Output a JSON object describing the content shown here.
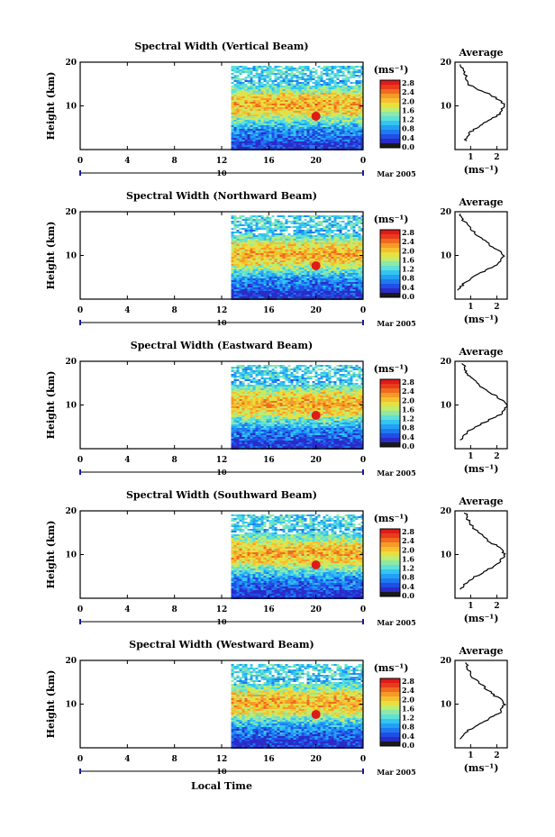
{
  "figure": {
    "xlabel": "Local Time",
    "date_label": "Mar 2005",
    "day_label": "10",
    "units_label": "(ms⁻¹)",
    "avg_title": "Average",
    "avg_xlabel": "(ms⁻¹)"
  },
  "colorbar": {
    "ticks": [
      "2.8",
      "2.4",
      "2.0",
      "1.6",
      "1.2",
      "0.8",
      "0.4",
      "0.0"
    ],
    "colors": [
      "#1a1a1a",
      "#2b2bc8",
      "#1f4fe6",
      "#1f7af0",
      "#22a0f5",
      "#35c5f0",
      "#5fe0d8",
      "#8ee8a8",
      "#c0ec70",
      "#e8e040",
      "#f5c030",
      "#f59a28",
      "#f06a20",
      "#e83c1c",
      "#e01a1a"
    ]
  },
  "chart_data": [
    {
      "type": "heatmap",
      "title": "Spectral Width (Vertical Beam)",
      "ylabel": "Height (km)",
      "xlim": [
        0,
        24
      ],
      "ylim": [
        0,
        20
      ],
      "xticks": [
        "0",
        "4",
        "8",
        "12",
        "16",
        "20",
        "0"
      ],
      "yticks": [
        "20",
        "10"
      ],
      "data_start_hour": 12.8,
      "avg_profile": {
        "xlim": [
          0.4,
          2.4
        ],
        "xticks": [
          "1",
          "2"
        ],
        "x": [
          0.8,
          1.0,
          1.5,
          2.1,
          2.3,
          2.2,
          1.9,
          1.6,
          1.2,
          0.9,
          0.8,
          0.8,
          0.7,
          0.6
        ],
        "y": [
          2,
          4,
          6,
          8,
          10,
          11,
          12,
          13,
          14,
          15,
          16,
          17,
          18,
          19.5
        ]
      }
    },
    {
      "type": "heatmap",
      "title": "Spectral Width (Northward Beam)",
      "ylabel": "Height (km)",
      "xlim": [
        0,
        24
      ],
      "ylim": [
        0,
        20
      ],
      "xticks": [
        "0",
        "4",
        "8",
        "12",
        "16",
        "20",
        "0"
      ],
      "yticks": [
        "20",
        "10"
      ],
      "data_start_hour": 12.8,
      "avg_profile": {
        "xlim": [
          0.4,
          2.4
        ],
        "xticks": [
          "1",
          "2"
        ],
        "x": [
          0.5,
          0.8,
          1.4,
          2.0,
          2.3,
          2.1,
          1.8,
          1.6,
          1.4,
          1.2,
          1.0,
          0.9,
          0.7,
          0.6
        ],
        "y": [
          2,
          4,
          6,
          8,
          10,
          11,
          12,
          13,
          14,
          15,
          16,
          17,
          18,
          19.5
        ]
      }
    },
    {
      "type": "heatmap",
      "title": "Spectral Width (Eastward Beam)",
      "ylabel": "Height (km)",
      "xlim": [
        0,
        24
      ],
      "ylim": [
        0,
        20
      ],
      "xticks": [
        "0",
        "4",
        "8",
        "12",
        "16",
        "20",
        "0"
      ],
      "yticks": [
        "20",
        "10"
      ],
      "data_start_hour": 12.8,
      "avg_profile": {
        "xlim": [
          0.4,
          2.4
        ],
        "xticks": [
          "1",
          "2"
        ],
        "x": [
          0.6,
          0.9,
          1.5,
          2.2,
          2.4,
          2.2,
          2.0,
          1.7,
          1.4,
          1.3,
          1.1,
          0.9,
          0.8,
          0.7
        ],
        "y": [
          2,
          4,
          6,
          8,
          10,
          11,
          12,
          13,
          14,
          15,
          16,
          17,
          18,
          19.5
        ]
      }
    },
    {
      "type": "heatmap",
      "title": "Spectral Width (Southward Beam)",
      "ylabel": "Height (km)",
      "xlim": [
        0,
        24
      ],
      "ylim": [
        0,
        20
      ],
      "xticks": [
        "0",
        "4",
        "8",
        "12",
        "16",
        "20",
        "0"
      ],
      "yticks": [
        "20",
        "10"
      ],
      "data_start_hour": 12.8,
      "avg_profile": {
        "xlim": [
          0.4,
          2.4
        ],
        "xticks": [
          "1",
          "2"
        ],
        "x": [
          0.6,
          0.9,
          1.5,
          2.1,
          2.3,
          2.2,
          2.0,
          1.7,
          1.5,
          1.3,
          1.1,
          1.0,
          0.9,
          0.8
        ],
        "y": [
          2,
          4,
          6,
          8,
          10,
          11,
          12,
          13,
          14,
          15,
          16,
          17,
          18,
          19.5
        ]
      }
    },
    {
      "type": "heatmap",
      "title": "Spectral Width (Westward Beam)",
      "ylabel": "Height (km)",
      "xlim": [
        0,
        24
      ],
      "ylim": [
        0,
        20
      ],
      "xticks": [
        "0",
        "4",
        "8",
        "12",
        "16",
        "20",
        "0"
      ],
      "yticks": [
        "20",
        "10"
      ],
      "data_start_hour": 12.8,
      "avg_profile": {
        "xlim": [
          0.4,
          2.4
        ],
        "xticks": [
          "1",
          "2"
        ],
        "x": [
          0.6,
          0.9,
          1.5,
          2.1,
          2.3,
          2.2,
          1.9,
          1.7,
          1.5,
          1.3,
          1.1,
          1.0,
          0.9,
          0.8
        ],
        "y": [
          2,
          4,
          6,
          8,
          10,
          11,
          12,
          13,
          14,
          15,
          16,
          17,
          18,
          19.5
        ]
      }
    }
  ]
}
